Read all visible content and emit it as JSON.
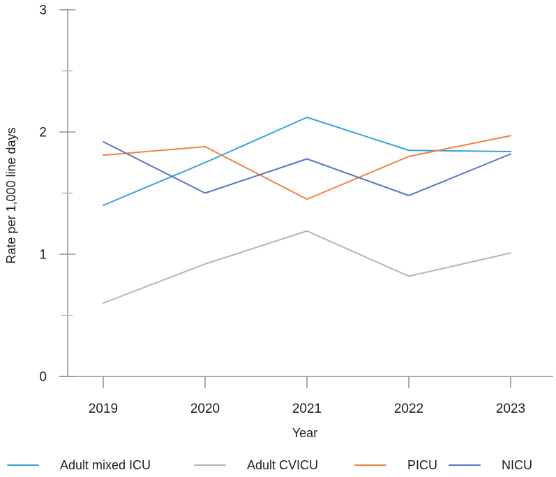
{
  "chart_data": {
    "type": "line",
    "title": "",
    "xlabel": "Year",
    "ylabel": "Rate per 1,000 line days",
    "x": [
      "2019",
      "2020",
      "2021",
      "2022",
      "2023"
    ],
    "ylim": [
      0,
      3
    ],
    "y_ticks_major": [
      0,
      1,
      2,
      3
    ],
    "y_ticks_minor": [
      0.5,
      1.5,
      2.5
    ],
    "grid": false,
    "legend_position": "bottom",
    "axis_color": "#8f8f8f",
    "minor_tick_color": "#b9b9b9",
    "text_color": "#1c1c1c",
    "series": [
      {
        "name": "Adult mixed ICU",
        "color": "#35a3da",
        "values": [
          1.4,
          1.75,
          2.12,
          1.85,
          1.84
        ]
      },
      {
        "name": "Adult CVICU",
        "color": "#b4b4b4",
        "values": [
          0.6,
          0.92,
          1.19,
          0.82,
          1.01
        ]
      },
      {
        "name": "PICU",
        "color": "#f0823f",
        "values": [
          1.81,
          1.88,
          1.45,
          1.8,
          1.97
        ]
      },
      {
        "name": "NICU",
        "color": "#5577c1",
        "values": [
          1.92,
          1.5,
          1.78,
          1.48,
          1.82
        ]
      }
    ]
  }
}
